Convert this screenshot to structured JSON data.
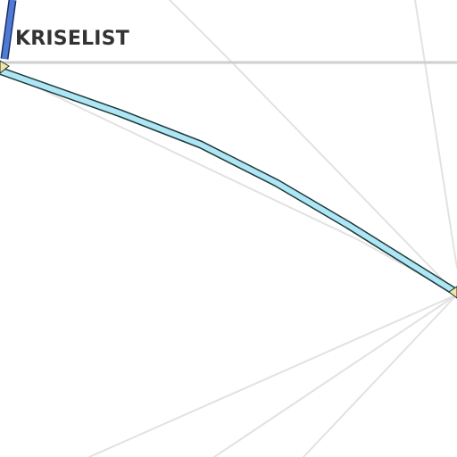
{
  "map": {
    "street_label": "KRISELIST",
    "colors": {
      "background": "#ffffff",
      "minor_road": "#e2e2e2",
      "major_road": "#cfcfcf",
      "route_fill": "#aee6f5",
      "route_outline": "#1f3b3b",
      "route_upper_fill": "#4f7bd6",
      "route_upper_outline": "#1c2f66",
      "node_fill": "#f2e6a6",
      "label_text": "#333333"
    }
  }
}
